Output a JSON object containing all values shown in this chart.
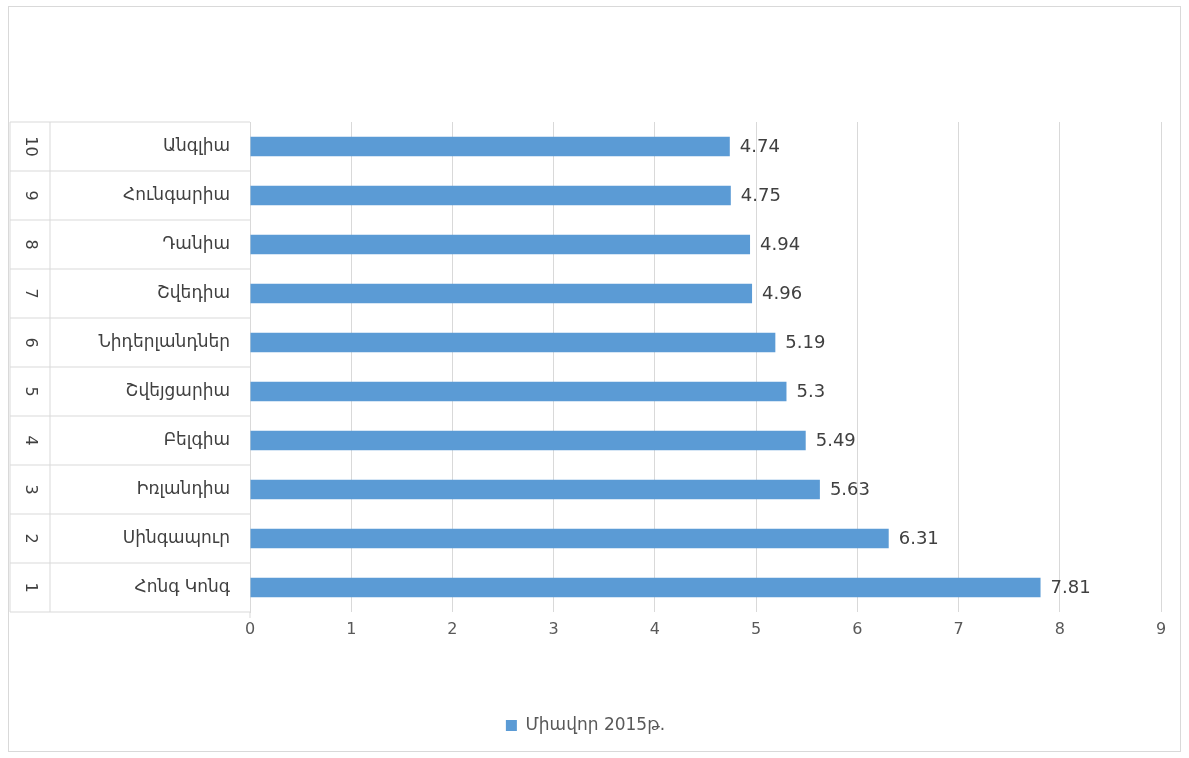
{
  "chart_data": {
    "type": "bar",
    "orientation": "horizontal",
    "categories": [
      "Անգլիա",
      "Հունգարիա",
      "Դանիա",
      "Շվեդիա",
      "Նիդերլանդներ",
      "Շվեյցարիա",
      "Բելգիա",
      "Իռլանդիա",
      "Սինգապուր",
      "Հոնգ Կոնգ"
    ],
    "series": [
      {
        "name": "Միավոր 2015թ.",
        "color": "#5b9bd5",
        "values": [
          4.74,
          4.75,
          4.94,
          4.96,
          5.19,
          5.3,
          5.49,
          5.63,
          6.31,
          7.81
        ]
      }
    ],
    "xlim": [
      0,
      9
    ],
    "xticks": [
      0,
      1,
      2,
      3,
      4,
      5,
      6,
      7,
      8,
      9
    ],
    "grid": "x",
    "legend": "bottom",
    "data_labels": true,
    "annotations": [
      "10",
      "9",
      "8",
      "7",
      "6",
      "5",
      "4",
      "3",
      "2",
      "1"
    ]
  }
}
